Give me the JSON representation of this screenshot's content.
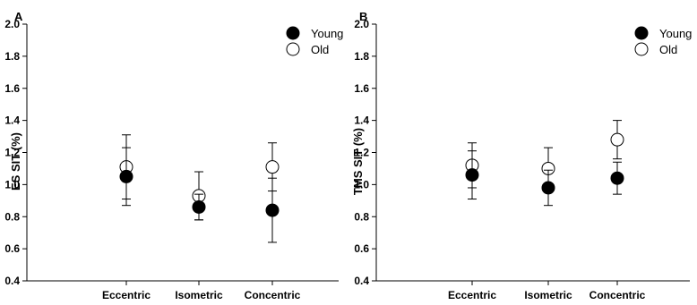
{
  "chart_data": [
    {
      "type": "scatter",
      "panel_label": "A",
      "ylabel": "ES SIT (%)",
      "xlabel": "",
      "categories": [
        "Eccentric",
        "Isometric",
        "Concentric"
      ],
      "ylim": [
        0.4,
        2.0
      ],
      "yticks": [
        "0.4",
        "0.6",
        "0.8",
        "1.0",
        "1.2",
        "1.4",
        "1.6",
        "1.8",
        "2.0"
      ],
      "legend_position": "top-right",
      "series": [
        {
          "name": "Young",
          "marker": "filled-circle",
          "color": "#000000",
          "values": [
            1.05,
            0.86,
            0.84
          ],
          "errors": [
            0.18,
            0.08,
            0.2
          ]
        },
        {
          "name": "Old",
          "marker": "open-circle",
          "color": "#000000",
          "values": [
            1.11,
            0.93,
            1.11
          ],
          "errors": [
            0.2,
            0.15,
            0.15
          ]
        }
      ]
    },
    {
      "type": "scatter",
      "panel_label": "B",
      "ylabel": "TMS SIT (%)",
      "xlabel": "",
      "categories": [
        "Eccentric",
        "Isometric",
        "Concentric"
      ],
      "ylim": [
        0.4,
        2.0
      ],
      "yticks": [
        "0.4",
        "0.6",
        "0.8",
        "1.0",
        "1.2",
        "1.4",
        "1.6",
        "1.8",
        "2.0"
      ],
      "legend_position": "top-right",
      "series": [
        {
          "name": "Young",
          "marker": "filled-circle",
          "color": "#000000",
          "values": [
            1.06,
            0.98,
            1.04
          ],
          "errors": [
            0.15,
            0.11,
            0.1
          ]
        },
        {
          "name": "Old",
          "marker": "open-circle",
          "color": "#000000",
          "values": [
            1.12,
            1.1,
            1.28
          ],
          "errors": [
            0.14,
            0.13,
            0.12
          ]
        }
      ]
    }
  ]
}
